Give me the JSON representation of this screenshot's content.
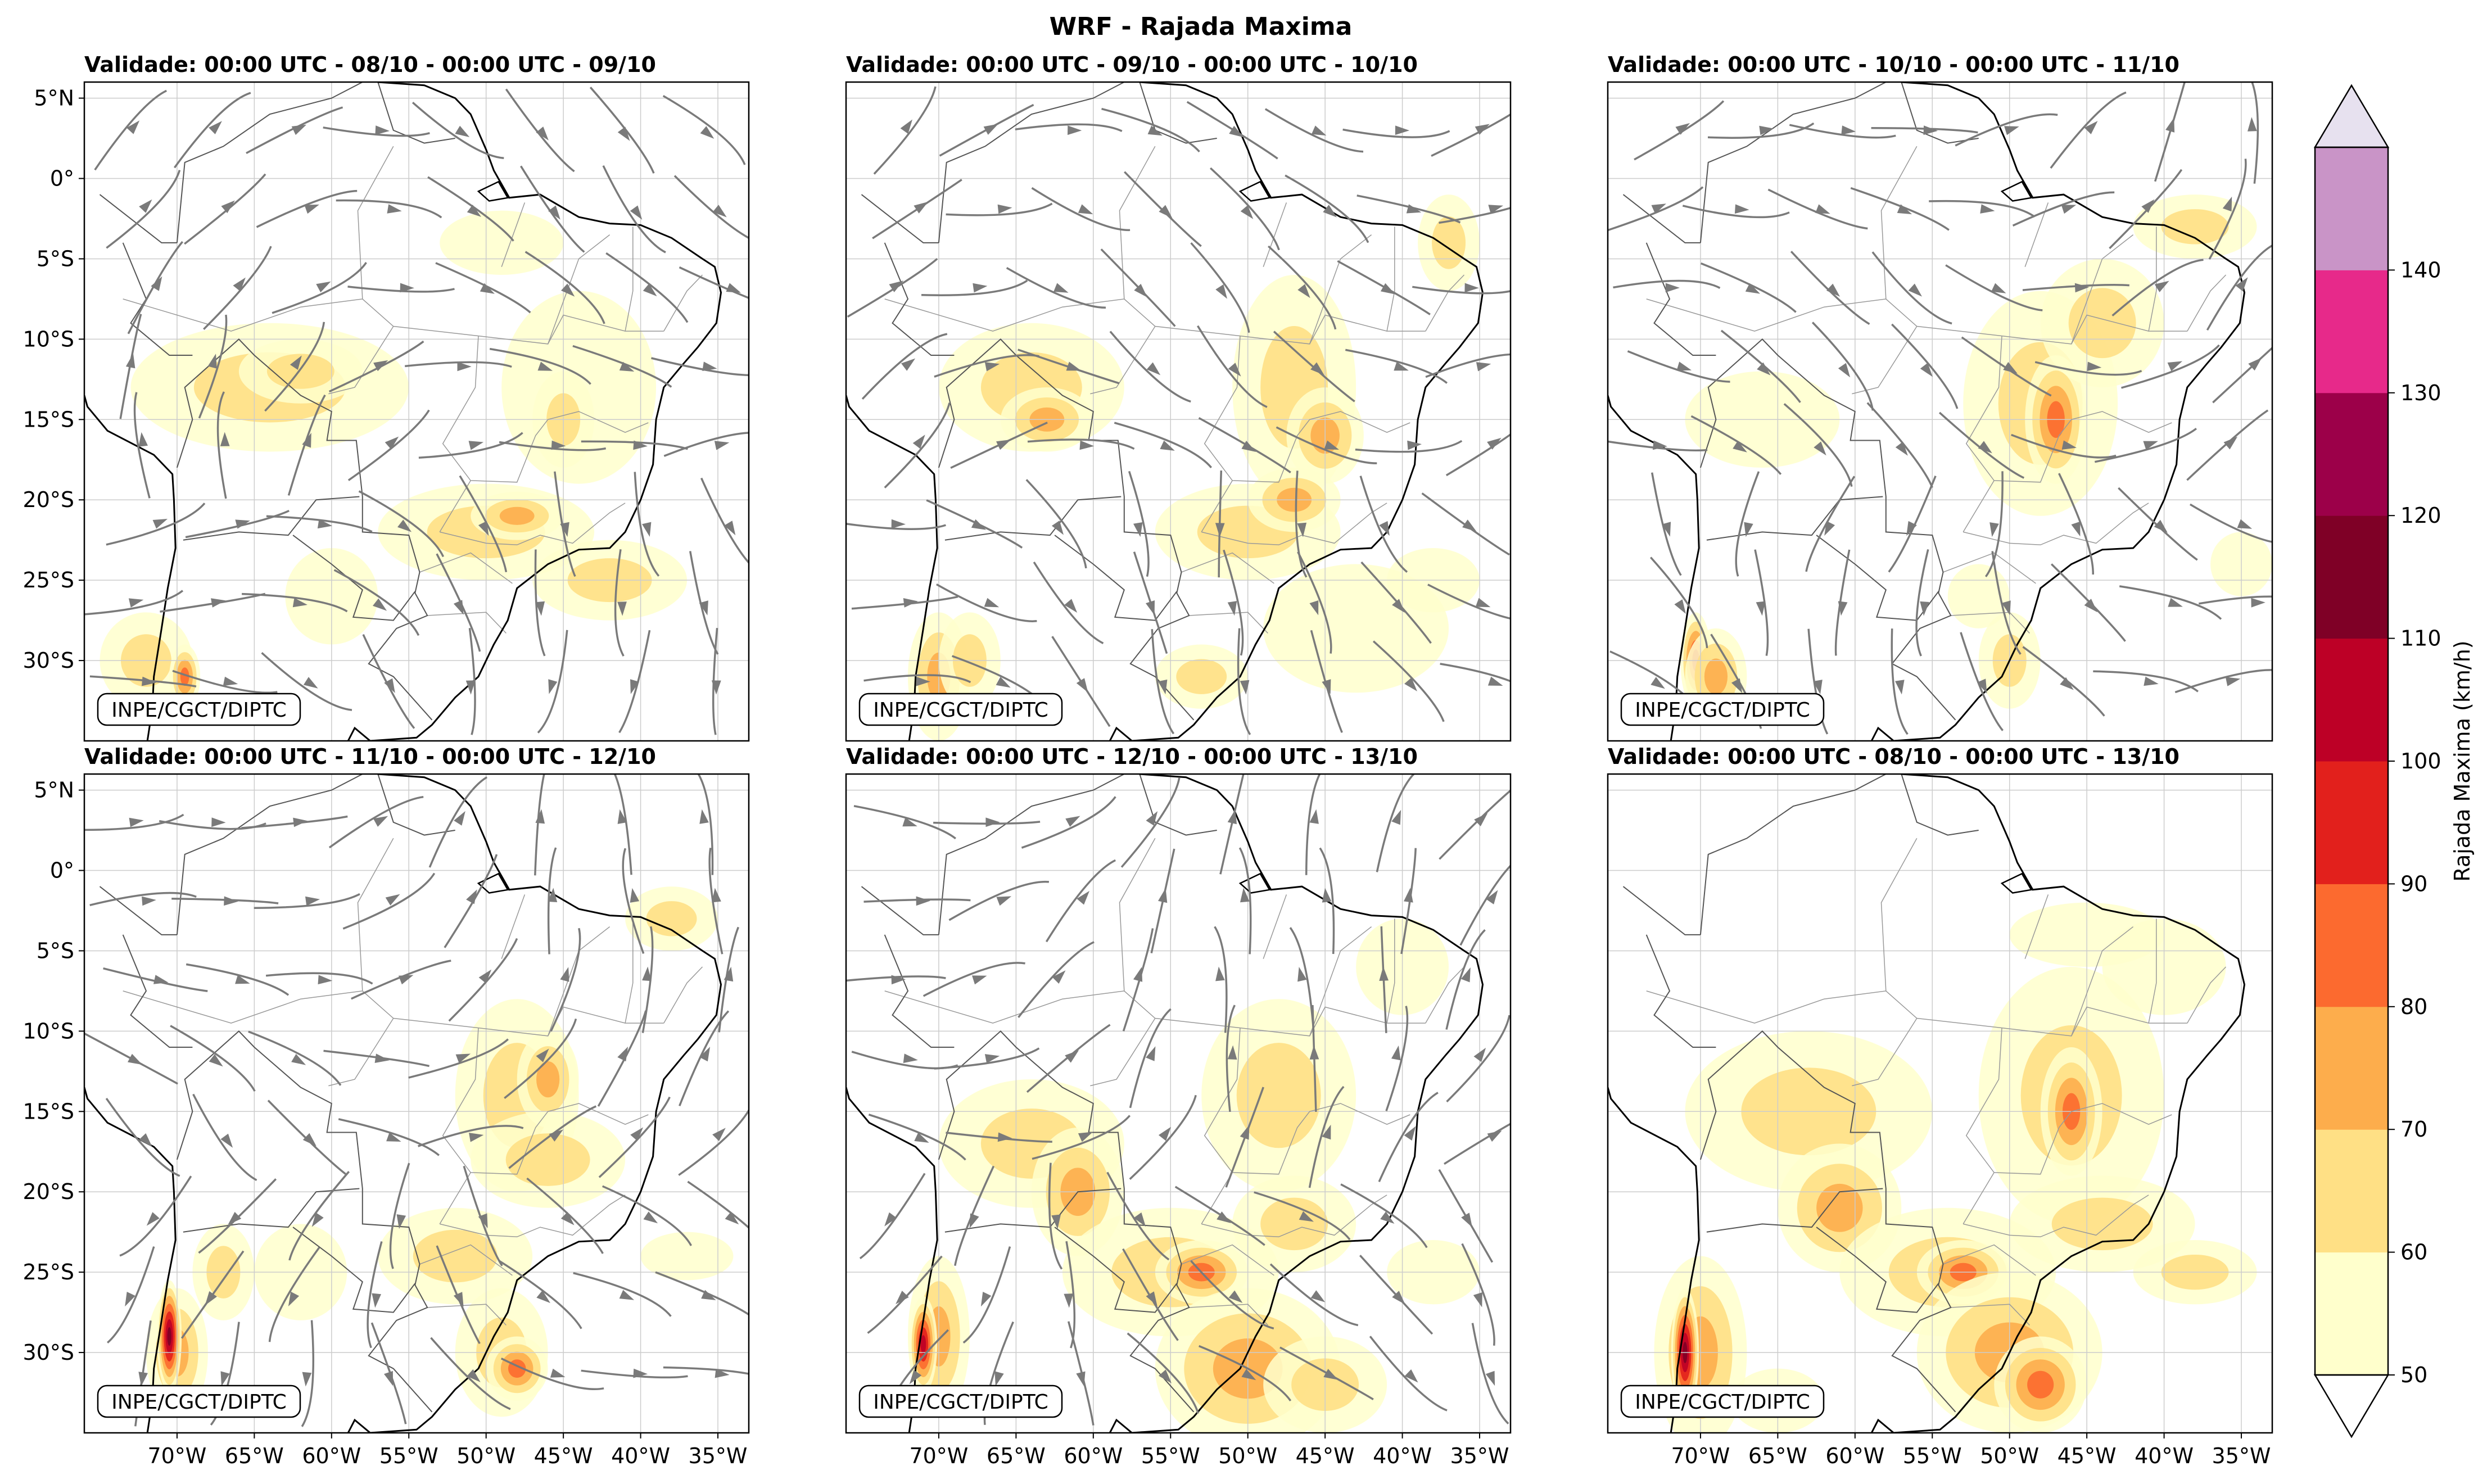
{
  "title": "WRF - Rajada Maxima",
  "credit": "INPE/CGCT/DIPTC",
  "lat_ticks": [
    "5°N",
    "0°",
    "5°S",
    "10°S",
    "15°S",
    "20°S",
    "25°S",
    "30°S"
  ],
  "lon_ticks": [
    "70°W",
    "65°W",
    "60°W",
    "55°W",
    "50°W",
    "45°W",
    "40°W",
    "35°W"
  ],
  "panels": [
    {
      "label": "Validade: 00:00 UTC - 08/10 - 00:00 UTC - 09/10",
      "streamlines": true
    },
    {
      "label": "Validade: 00:00 UTC - 09/10 - 00:00 UTC - 10/10",
      "streamlines": true
    },
    {
      "label": "Validade: 00:00 UTC - 10/10 - 00:00 UTC - 11/10",
      "streamlines": true
    },
    {
      "label": "Validade: 00:00 UTC - 11/10 - 00:00 UTC - 12/10",
      "streamlines": true
    },
    {
      "label": "Validade: 00:00 UTC - 12/10 - 00:00 UTC - 13/10",
      "streamlines": true
    },
    {
      "label": "Validade: 00:00 UTC - 08/10 - 00:00 UTC - 13/10",
      "streamlines": false
    }
  ],
  "colorbar": {
    "label": "Rajada Maxima (km/h)",
    "ticks": [
      "50",
      "60",
      "70",
      "80",
      "90",
      "100",
      "110",
      "120",
      "130",
      "140"
    ],
    "colors": [
      "#ffffcc",
      "#ffe085",
      "#fdad4c",
      "#fc6a2f",
      "#e2201c",
      "#bd0026",
      "#7f0026",
      "#9c0049",
      "#e7298a",
      "#c994c7"
    ],
    "under_color": "#ffffff",
    "over_color": "#e7e1ef"
  }
}
